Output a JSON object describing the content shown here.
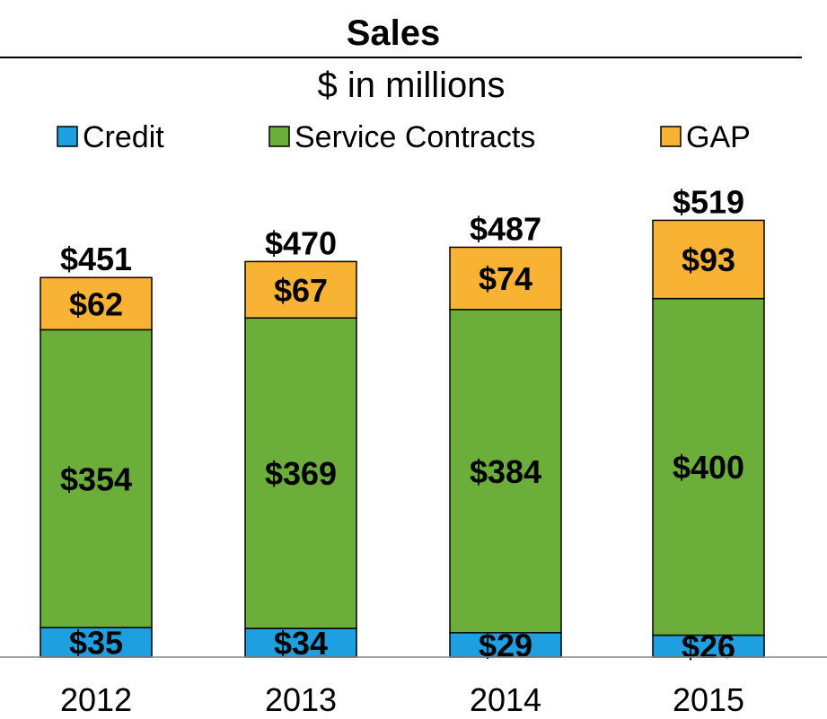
{
  "chart_data": {
    "type": "bar",
    "stacked": true,
    "title": "Sales",
    "subtitle": "$ in millions",
    "categories": [
      "2012",
      "2013",
      "2014",
      "2015"
    ],
    "series": [
      {
        "name": "Credit",
        "color": "#1E9FE0",
        "values": [
          35,
          34,
          29,
          26
        ],
        "labels": [
          "$35",
          "$34",
          "$29",
          "$26"
        ]
      },
      {
        "name": "Service Contracts",
        "color": "#6BAE3A",
        "values": [
          354,
          369,
          384,
          400
        ],
        "labels": [
          "$354",
          "$369",
          "$384",
          "$400"
        ]
      },
      {
        "name": "GAP",
        "color": "#F8B335",
        "values": [
          62,
          67,
          74,
          93
        ],
        "labels": [
          "$62",
          "$67",
          "$74",
          "$93"
        ]
      }
    ],
    "totals": [
      451,
      470,
      487,
      519
    ],
    "total_labels": [
      "$451",
      "$470",
      "$487",
      "$519"
    ],
    "ylim": [
      0,
      530
    ],
    "legend_position": "top",
    "grid": false
  }
}
